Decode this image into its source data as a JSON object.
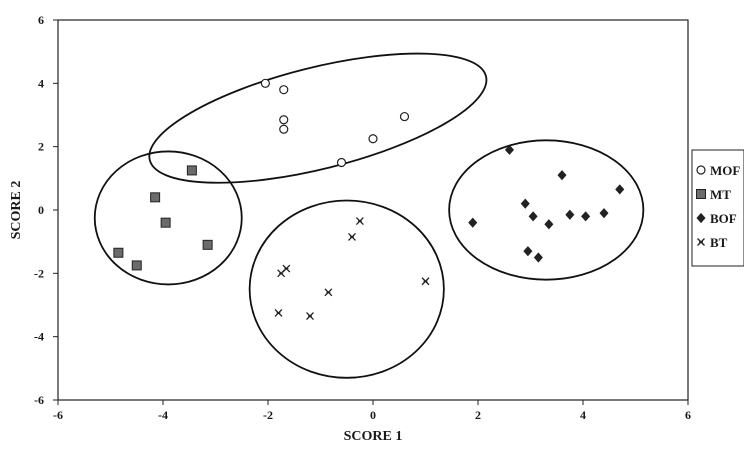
{
  "chart_data": {
    "type": "scatter",
    "title": "",
    "xlabel": "SCORE 1",
    "ylabel": "SCORE 2",
    "xlim": [
      -6,
      6
    ],
    "ylim": [
      -6,
      6
    ],
    "xticks": [
      -6,
      -4,
      -2,
      0,
      2,
      4,
      6
    ],
    "yticks": [
      -6,
      -4,
      -2,
      0,
      2,
      4,
      6
    ],
    "grid": false,
    "legend_position": "right",
    "series": [
      {
        "name": "MOF",
        "marker": "open-circle",
        "points": [
          [
            -2.05,
            4.0
          ],
          [
            -1.7,
            3.8
          ],
          [
            -1.7,
            2.85
          ],
          [
            -1.7,
            2.55
          ],
          [
            -0.6,
            1.5
          ],
          [
            0.0,
            2.25
          ],
          [
            0.6,
            2.95
          ]
        ]
      },
      {
        "name": "MT",
        "marker": "filled-square",
        "points": [
          [
            -3.45,
            1.25
          ],
          [
            -4.15,
            0.4
          ],
          [
            -3.95,
            -0.4
          ],
          [
            -3.15,
            -1.1
          ],
          [
            -4.85,
            -1.35
          ],
          [
            -4.5,
            -1.75
          ]
        ]
      },
      {
        "name": "BOF",
        "marker": "filled-diamond",
        "points": [
          [
            2.6,
            1.9
          ],
          [
            3.6,
            1.1
          ],
          [
            4.7,
            0.65
          ],
          [
            1.9,
            -0.4
          ],
          [
            2.9,
            0.2
          ],
          [
            3.05,
            -0.2
          ],
          [
            3.35,
            -0.45
          ],
          [
            3.75,
            -0.15
          ],
          [
            4.05,
            -0.2
          ],
          [
            4.4,
            -0.1
          ],
          [
            2.95,
            -1.3
          ],
          [
            3.15,
            -1.5
          ]
        ]
      },
      {
        "name": "BT",
        "marker": "asterisk",
        "points": [
          [
            -0.25,
            -0.35
          ],
          [
            -0.4,
            -0.85
          ],
          [
            -1.65,
            -1.85
          ],
          [
            -1.75,
            -2.0
          ],
          [
            -0.85,
            -2.6
          ],
          [
            1.0,
            -2.25
          ],
          [
            -1.8,
            -3.25
          ],
          [
            -1.2,
            -3.35
          ]
        ]
      }
    ],
    "clusters": [
      {
        "series": "MOF",
        "cx": -1.05,
        "cy": 2.9,
        "rx": 3.3,
        "ry": 1.6,
        "rotation": -14
      },
      {
        "series": "MT",
        "cx": -3.9,
        "cy": -0.25,
        "rx": 1.4,
        "ry": 2.1,
        "rotation": 0
      },
      {
        "series": "BT",
        "cx": -0.5,
        "cy": -2.5,
        "rx": 1.85,
        "ry": 2.8,
        "rotation": 0
      },
      {
        "series": "BOF",
        "cx": 3.3,
        "cy": 0.0,
        "rx": 1.85,
        "ry": 2.2,
        "rotation": 0
      }
    ]
  }
}
